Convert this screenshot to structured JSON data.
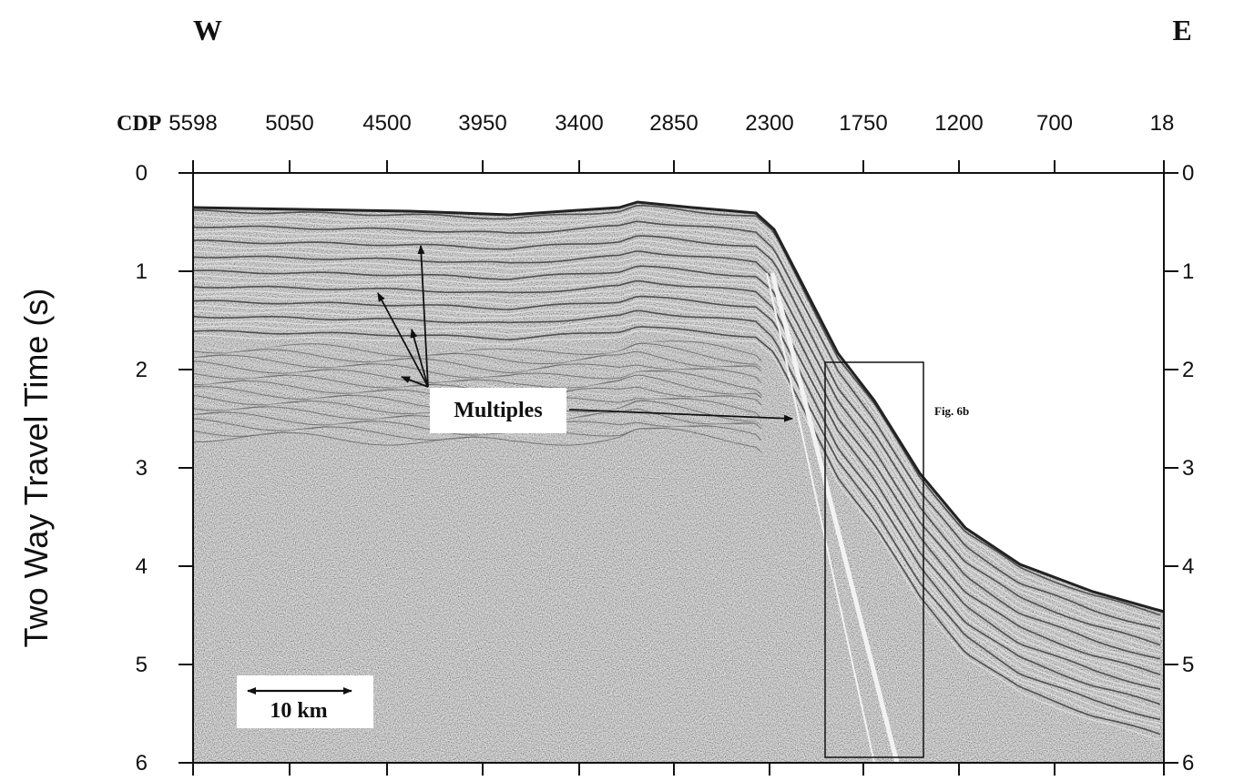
{
  "compass": {
    "west": "W",
    "east": "E"
  },
  "top_axis": {
    "label": "CDP",
    "ticks": [
      "5598",
      "5050",
      "4500",
      "3950",
      "3400",
      "2850",
      "2300",
      "1750",
      "1200",
      "700",
      "18"
    ]
  },
  "y_axis": {
    "title": "Two Way Travel Time (s)",
    "ticks": [
      "0",
      "1",
      "2",
      "3",
      "4",
      "5",
      "6"
    ],
    "range": [
      0,
      6
    ]
  },
  "annotations": {
    "multiples": "Multiples",
    "figure_ref": "Fig. 6b",
    "scale_bar": "10 km"
  },
  "colors": {
    "ink": "#111111",
    "background": "#ffffff",
    "seismic_base": "#9a9a9a"
  }
}
